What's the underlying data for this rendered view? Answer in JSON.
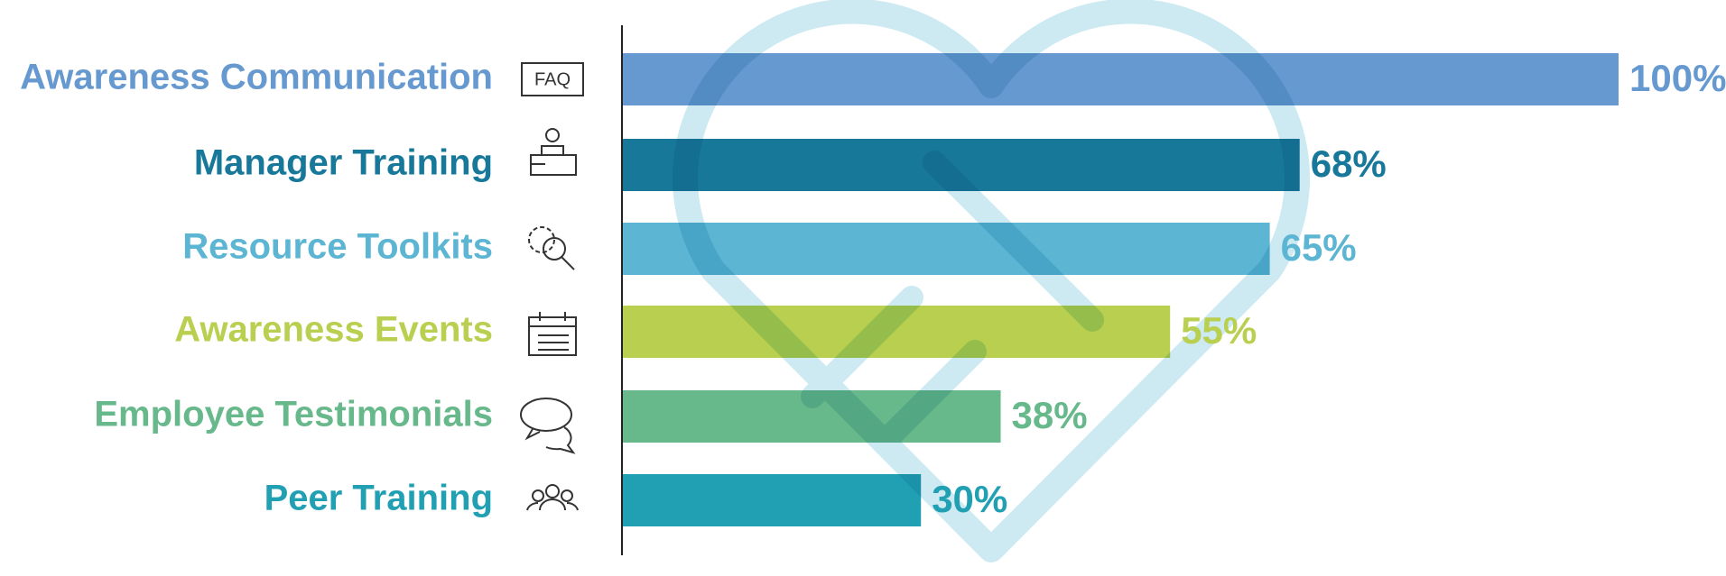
{
  "chart_data": {
    "type": "bar",
    "orientation": "horizontal",
    "categories": [
      "Awareness Communication",
      "Manager Training",
      "Resource Toolkits",
      "Awareness Events",
      "Employee Testimonials",
      "Peer Training"
    ],
    "values": [
      100,
      68,
      65,
      55,
      38,
      30
    ],
    "value_labels": [
      "100%",
      "68%",
      "65%",
      "55%",
      "38%",
      "30%"
    ],
    "colors": [
      "#6699cf",
      "#17789a",
      "#5bb5d3",
      "#b9cf50",
      "#67b88b",
      "#21a0b3"
    ],
    "icon_text": "FAQ"
  }
}
